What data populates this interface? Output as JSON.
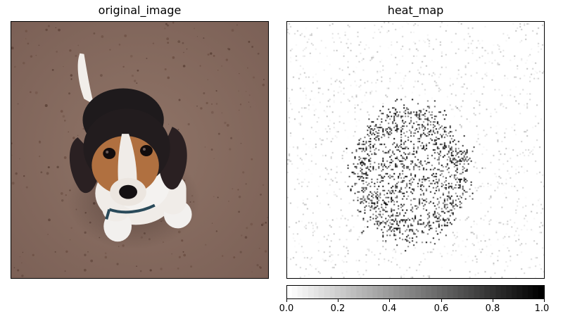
{
  "left_panel": {
    "title": "original_image",
    "subject": "beagle puppy sitting on brown speckled floor, viewed from above"
  },
  "right_panel": {
    "title": "heat_map",
    "colormap": "binary (white to black)"
  },
  "colorbar": {
    "ticks": [
      "0.0",
      "0.2",
      "0.4",
      "0.6",
      "0.8",
      "1.0"
    ],
    "range": [
      0.0,
      1.0
    ],
    "colors": {
      "low": "#ffffff",
      "high": "#000000"
    }
  },
  "colors": {
    "floor": "#8a6e62",
    "floor_speckle": "#5a4036",
    "fur_black": "#1e1a1c",
    "fur_tan": "#b07040",
    "fur_white": "#f2f0ee"
  }
}
